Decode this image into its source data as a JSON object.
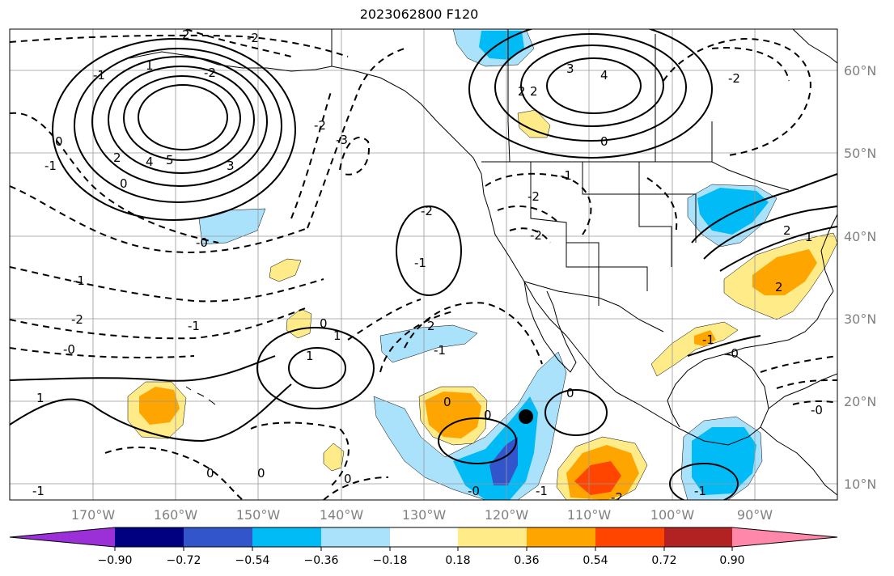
{
  "title": "2023062800 F120",
  "map": {
    "lat_labels": [
      "60°N",
      "50°N",
      "40°N",
      "30°N",
      "20°N",
      "10°N"
    ],
    "lon_labels": [
      "170°W",
      "160°W",
      "150°W",
      "140°W",
      "130°W",
      "120°W",
      "110°W",
      "100°W",
      "90°W"
    ],
    "contour_labels": [
      {
        "text": "2"
      },
      {
        "text": "-2"
      },
      {
        "text": "-1"
      },
      {
        "text": "1"
      },
      {
        "text": "-2"
      },
      {
        "text": "3"
      },
      {
        "text": "4"
      },
      {
        "text": "5"
      },
      {
        "text": "2"
      },
      {
        "text": "0"
      },
      {
        "text": "-1"
      },
      {
        "text": "0"
      },
      {
        "text": "-1"
      },
      {
        "text": "-2"
      },
      {
        "text": "-1"
      },
      {
        "text": "-0"
      },
      {
        "text": "1"
      },
      {
        "text": "-3"
      },
      {
        "text": "-2"
      },
      {
        "text": "-0"
      },
      {
        "text": "-1"
      },
      {
        "text": "1"
      },
      {
        "text": "0"
      },
      {
        "text": "1"
      },
      {
        "text": "2"
      },
      {
        "text": "-1"
      },
      {
        "text": "-2"
      },
      {
        "text": "0"
      },
      {
        "text": "0"
      },
      {
        "text": "0"
      },
      {
        "text": "-0"
      },
      {
        "text": "0"
      },
      {
        "text": "3"
      },
      {
        "text": "4"
      },
      {
        "text": "2"
      },
      {
        "text": "2"
      },
      {
        "text": "0"
      },
      {
        "text": "-2"
      },
      {
        "text": "-2"
      },
      {
        "text": "-1"
      },
      {
        "text": "-2"
      },
      {
        "text": "2"
      },
      {
        "text": "1"
      },
      {
        "text": "2"
      },
      {
        "text": "-0"
      },
      {
        "text": "-0"
      },
      {
        "text": "-1"
      },
      {
        "text": "0"
      },
      {
        "text": "-1"
      },
      {
        "text": "0"
      },
      {
        "text": "-1"
      },
      {
        "text": "-2"
      },
      {
        "text": "-1"
      }
    ],
    "storm_marker": {
      "lat": 18.3,
      "lon": -116.8
    }
  },
  "colorbar": {
    "tick_labels": [
      "−0.90",
      "−0.72",
      "−0.54",
      "−0.36",
      "−0.18",
      "0.18",
      "0.36",
      "0.54",
      "0.72",
      "0.90"
    ],
    "colors": [
      "#9b30d9",
      "#000080",
      "#3355cc",
      "#00bbf5",
      "#aae2fb",
      "#ffffff",
      "#ffeb88",
      "#ffa500",
      "#ff4500",
      "#b22222",
      "#ff88aa"
    ]
  }
}
